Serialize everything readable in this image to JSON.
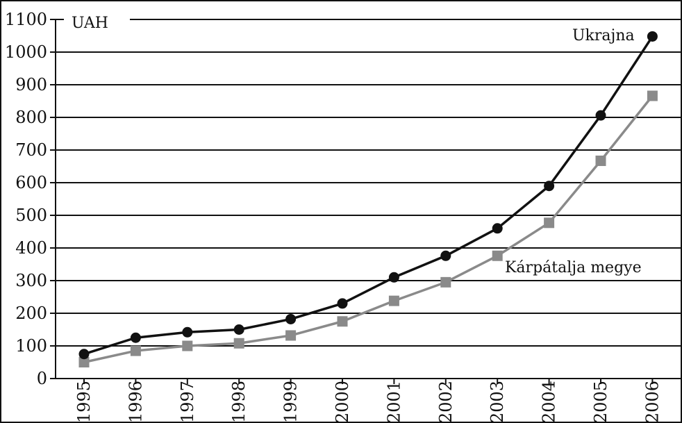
{
  "chart_data": {
    "type": "line",
    "unit_label": "UAH",
    "x": [
      "1995",
      "1996",
      "1997",
      "1998",
      "1999",
      "2000",
      "2001",
      "2002",
      "2003",
      "2004",
      "2005",
      "2006"
    ],
    "ylim": [
      0,
      1100
    ],
    "yticks": [
      0,
      100,
      200,
      300,
      400,
      500,
      600,
      700,
      800,
      900,
      1000,
      1100
    ],
    "grid": true,
    "series": [
      {
        "name": "Ukrajna",
        "marker": "circle",
        "color": "#111111",
        "values": [
          75,
          125,
          142,
          150,
          182,
          230,
          310,
          376,
          460,
          590,
          806,
          1048
        ]
      },
      {
        "name": "Kárpátalja megye",
        "marker": "square",
        "color": "#8a8a8a",
        "values": [
          50,
          85,
          100,
          108,
          132,
          175,
          238,
          295,
          376,
          477,
          667,
          866
        ]
      }
    ]
  }
}
